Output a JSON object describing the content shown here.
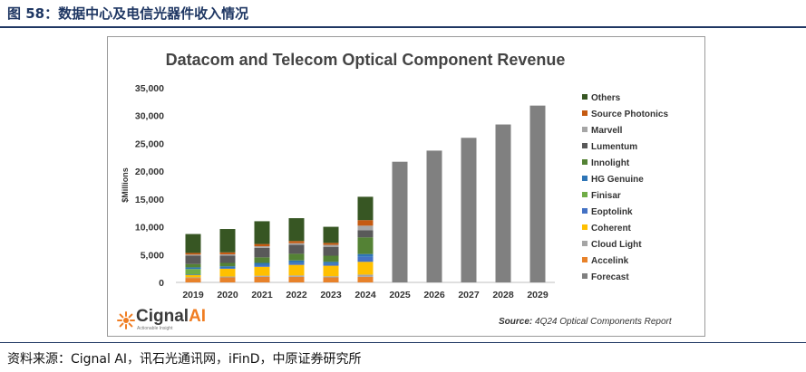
{
  "figure": {
    "label": "图 58：数据中心及电信光器件收入情况",
    "source_line": "资料来源：Cignal AI，讯石光通讯网，iFinD，中原证券研究所"
  },
  "logo": {
    "name": "Cignal",
    "suffix": "AI",
    "tagline": "Actionable Insight"
  },
  "report_source": {
    "prefix": "Source:",
    "text": "4Q24 Optical Components Report"
  },
  "chart_data": {
    "type": "bar",
    "stacked": true,
    "title": "Datacom and Telecom Optical Component Revenue",
    "ylabel": "$Millions",
    "xlabel": "",
    "ylim": [
      0,
      35000
    ],
    "yticks": [
      0,
      5000,
      10000,
      15000,
      20000,
      25000,
      30000,
      35000
    ],
    "ytick_labels": [
      "0",
      "5,000",
      "10,000",
      "15,000",
      "20,000",
      "25,000",
      "30,000",
      "35,000"
    ],
    "grid": false,
    "legend_position": "right",
    "categories": [
      "2019",
      "2020",
      "2021",
      "2022",
      "2023",
      "2024",
      "2025",
      "2026",
      "2027",
      "2028",
      "2029"
    ],
    "series": [
      {
        "name": "Accelink",
        "color": "#e8822a",
        "values": [
          800,
          900,
          1000,
          1000,
          900,
          1000,
          null,
          null,
          null,
          null,
          null
        ]
      },
      {
        "name": "Cloud Light",
        "color": "#a5a5a5",
        "values": [
          100,
          150,
          200,
          250,
          200,
          400,
          null,
          null,
          null,
          null,
          null
        ]
      },
      {
        "name": "Coherent",
        "color": "#ffc000",
        "values": [
          400,
          1400,
          1600,
          1900,
          1900,
          2300,
          null,
          null,
          null,
          null,
          null
        ]
      },
      {
        "name": "Eoptolink",
        "color": "#4472c4",
        "values": [
          100,
          150,
          300,
          300,
          300,
          900,
          null,
          null,
          null,
          null,
          null
        ]
      },
      {
        "name": "Finisar",
        "color": "#70ad47",
        "values": [
          1000,
          0,
          0,
          0,
          0,
          0,
          null,
          null,
          null,
          null,
          null
        ]
      },
      {
        "name": "HG Genuine",
        "color": "#2e75b6",
        "values": [
          300,
          300,
          400,
          500,
          400,
          500,
          null,
          null,
          null,
          null,
          null
        ]
      },
      {
        "name": "Innolight",
        "color": "#548235",
        "values": [
          600,
          600,
          1000,
          1200,
          1100,
          3000,
          null,
          null,
          null,
          null,
          null
        ]
      },
      {
        "name": "Lumentum",
        "color": "#595959",
        "values": [
          1500,
          1300,
          1700,
          1600,
          1600,
          1300,
          null,
          null,
          null,
          null,
          null
        ]
      },
      {
        "name": "Marvell",
        "color": "#a6a6a6",
        "values": [
          200,
          250,
          300,
          300,
          350,
          800,
          null,
          null,
          null,
          null,
          null
        ]
      },
      {
        "name": "Source Photonics",
        "color": "#c55a11",
        "values": [
          300,
          350,
          400,
          400,
          350,
          1000,
          null,
          null,
          null,
          null,
          null
        ]
      },
      {
        "name": "Others",
        "color": "#375623",
        "values": [
          3400,
          4200,
          4100,
          4100,
          2900,
          4200,
          null,
          null,
          null,
          null,
          null
        ]
      },
      {
        "name": "Forecast",
        "color": "#808080",
        "values": [
          null,
          null,
          null,
          null,
          null,
          null,
          21700,
          23700,
          26000,
          28400,
          31800
        ]
      }
    ],
    "legend_order": [
      "Others",
      "Source Photonics",
      "Marvell",
      "Lumentum",
      "Innolight",
      "HG Genuine",
      "Finisar",
      "Eoptolink",
      "Coherent",
      "Cloud Light",
      "Accelink",
      "Forecast"
    ]
  }
}
